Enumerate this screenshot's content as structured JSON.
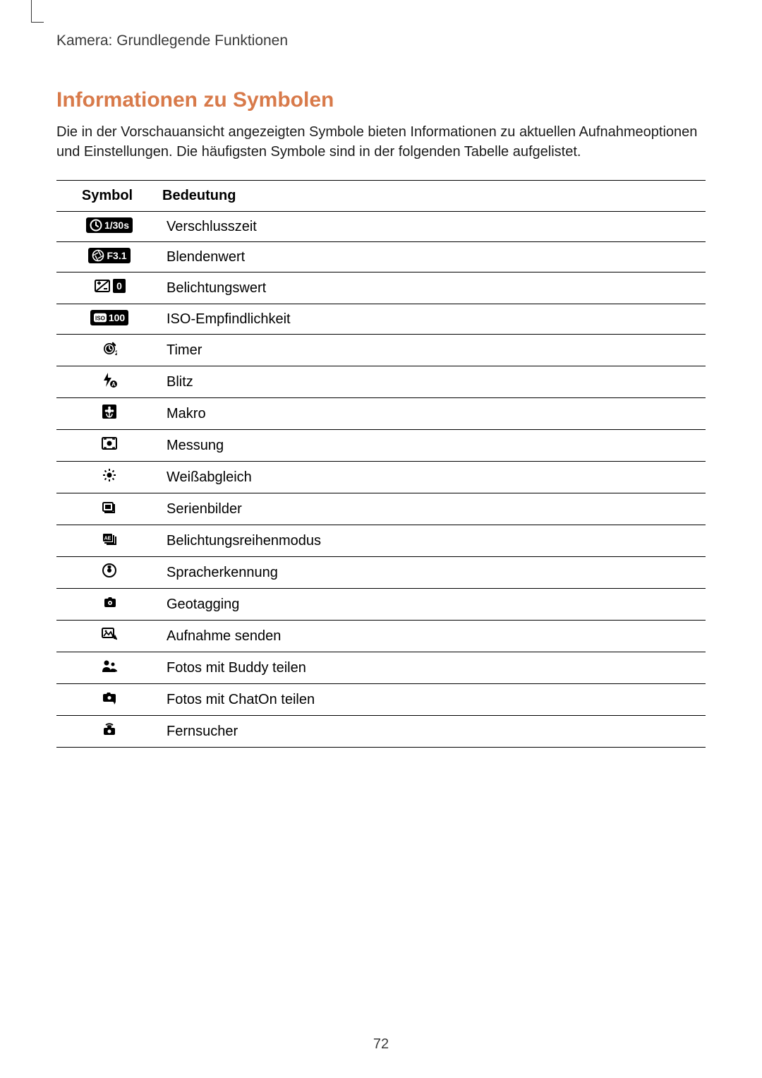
{
  "breadcrumb": "Kamera: Grundlegende Funktionen",
  "heading": "Informationen zu Symbolen",
  "intro": "Die in der Vorschauansicht angezeigten Symbole bieten Informationen zu aktuellen Aufnahmeoptionen und Einstellungen. Die häufigsten Symbole sind in der folgenden Tabelle aufgelistet.",
  "table": {
    "header_symbol": "Symbol",
    "header_meaning": "Bedeutung",
    "rows": [
      {
        "icon": "shutter",
        "label": "1/30s",
        "meaning": "Verschlusszeit"
      },
      {
        "icon": "aperture",
        "label": "F3.1",
        "meaning": "Blendenwert"
      },
      {
        "icon": "ev",
        "label": "0",
        "meaning": "Belichtungswert"
      },
      {
        "icon": "iso",
        "label": "100",
        "meaning": "ISO-Empfindlichkeit"
      },
      {
        "icon": "timer",
        "label": "",
        "meaning": "Timer"
      },
      {
        "icon": "flash",
        "label": "",
        "meaning": "Blitz"
      },
      {
        "icon": "macro",
        "label": "",
        "meaning": "Makro"
      },
      {
        "icon": "metering",
        "label": "",
        "meaning": "Messung"
      },
      {
        "icon": "wb",
        "label": "",
        "meaning": "Weißabgleich"
      },
      {
        "icon": "burst",
        "label": "",
        "meaning": "Serienbilder"
      },
      {
        "icon": "bracket",
        "label": "",
        "meaning": "Belichtungsreihenmodus"
      },
      {
        "icon": "voice",
        "label": "",
        "meaning": "Spracherkennung"
      },
      {
        "icon": "geotag",
        "label": "",
        "meaning": "Geotagging"
      },
      {
        "icon": "send",
        "label": "",
        "meaning": "Aufnahme senden"
      },
      {
        "icon": "buddy",
        "label": "",
        "meaning": "Fotos mit Buddy teilen"
      },
      {
        "icon": "chaton",
        "label": "",
        "meaning": "Fotos mit ChatOn teilen"
      },
      {
        "icon": "remote",
        "label": "",
        "meaning": "Fernsucher"
      }
    ]
  },
  "page_number": "72",
  "colors": {
    "heading": "#d87a4a",
    "text": "#1a1a1a",
    "border": "#000000",
    "badge_bg": "#000000",
    "badge_fg": "#ffffff",
    "background": "#ffffff"
  },
  "typography": {
    "breadcrumb_size": 21,
    "heading_size": 30,
    "body_size": 20,
    "badge_size": 14
  }
}
